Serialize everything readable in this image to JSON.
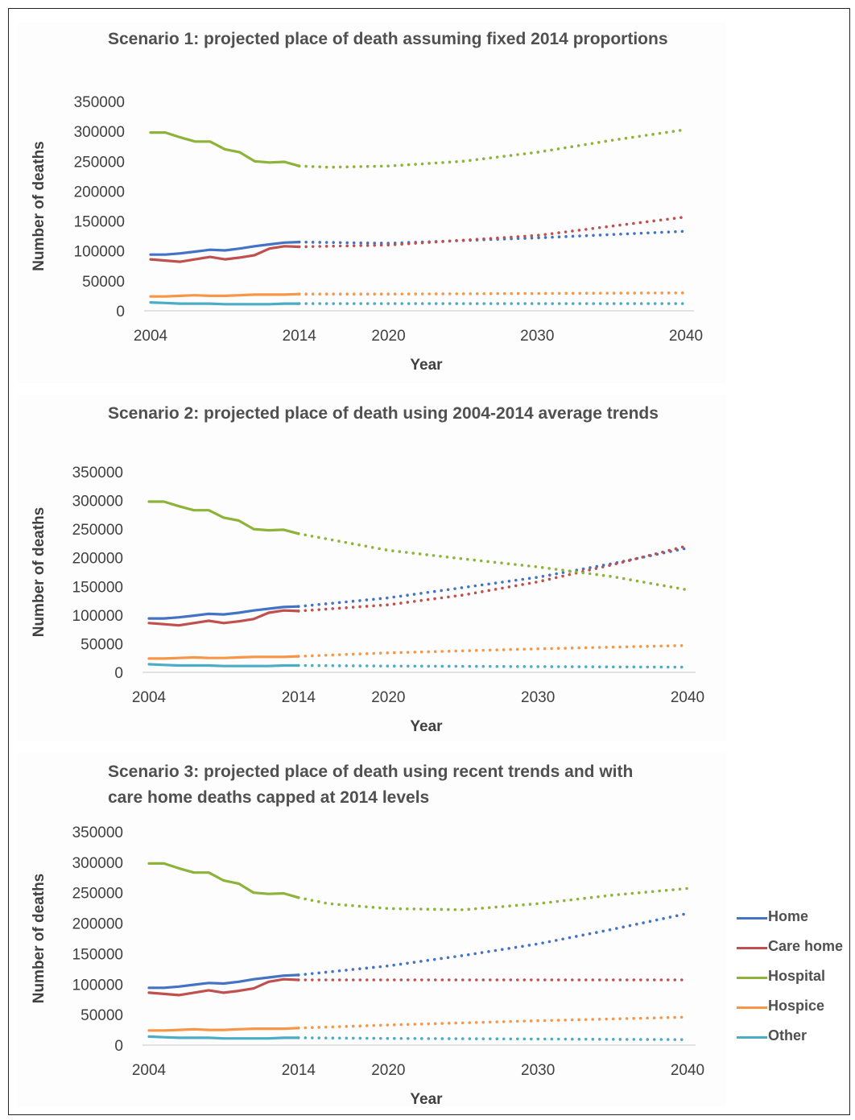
{
  "chart_data": [
    {
      "type": "line",
      "title": "Scenario 1: projected place of death assuming fixed 2014 proportions",
      "xlabel": "Year",
      "ylabel": "Number of deaths",
      "xlim": [
        2004,
        2040
      ],
      "ylim": [
        0,
        350000
      ],
      "x_ticks": [
        "2004",
        "2014",
        "2020",
        "2030",
        "2040"
      ],
      "y_ticks": [
        "350000",
        "300000",
        "250000",
        "200000",
        "150000",
        "100000",
        "50000",
        "0"
      ],
      "grid": false,
      "series": [
        {
          "name": "Home",
          "color": "#4472c4",
          "observed": {
            "x": [
              2004,
              2005,
              2006,
              2007,
              2008,
              2009,
              2010,
              2011,
              2012,
              2013,
              2014
            ],
            "y": [
              94000,
              94000,
              96000,
              99000,
              102000,
              101000,
              104000,
              108000,
              111000,
              114000,
              115000
            ]
          },
          "projected": {
            "x": [
              2014,
              2020,
              2030,
              2040
            ],
            "y": [
              115000,
              113000,
              122000,
              133000
            ]
          }
        },
        {
          "name": "Care home",
          "color": "#c0504d",
          "observed": {
            "x": [
              2004,
              2005,
              2006,
              2007,
              2008,
              2009,
              2010,
              2011,
              2012,
              2013,
              2014
            ],
            "y": [
              86000,
              84000,
              82000,
              86000,
              90000,
              86000,
              89000,
              93000,
              104000,
              108000,
              107000
            ]
          },
          "projected": {
            "x": [
              2014,
              2020,
              2030,
              2040
            ],
            "y": [
              107000,
              110000,
              126000,
              157000
            ]
          }
        },
        {
          "name": "Hospital",
          "color": "#8db33a",
          "observed": {
            "x": [
              2004,
              2005,
              2006,
              2007,
              2008,
              2009,
              2010,
              2011,
              2012,
              2013,
              2014
            ],
            "y": [
              298000,
              298000,
              290000,
              283000,
              283000,
              270000,
              265000,
              250000,
              248000,
              249000,
              242000
            ]
          },
          "projected": {
            "x": [
              2014,
              2016,
              2020,
              2025,
              2030,
              2035,
              2040
            ],
            "y": [
              242000,
              240000,
              242000,
              250000,
              265000,
              285000,
              303000
            ]
          }
        },
        {
          "name": "Hospice",
          "color": "#f79646",
          "observed": {
            "x": [
              2004,
              2005,
              2006,
              2007,
              2008,
              2009,
              2010,
              2011,
              2012,
              2013,
              2014
            ],
            "y": [
              24000,
              24000,
              25000,
              26000,
              25000,
              25000,
              26000,
              27000,
              27000,
              27000,
              28000
            ]
          },
          "projected": {
            "x": [
              2014,
              2020,
              2030,
              2040
            ],
            "y": [
              28000,
              28000,
              29000,
              30000
            ]
          }
        },
        {
          "name": "Other",
          "color": "#4bacc6",
          "observed": {
            "x": [
              2004,
              2005,
              2006,
              2007,
              2008,
              2009,
              2010,
              2011,
              2012,
              2013,
              2014
            ],
            "y": [
              14000,
              13000,
              12000,
              12000,
              12000,
              11000,
              11000,
              11000,
              11000,
              12000,
              12000
            ]
          },
          "projected": {
            "x": [
              2014,
              2020,
              2030,
              2040
            ],
            "y": [
              12000,
              12000,
              12000,
              12000
            ]
          }
        }
      ]
    },
    {
      "type": "line",
      "title": "Scenario 2: projected place of death using 2004-2014 average trends",
      "xlabel": "Year",
      "ylabel": "Number of deaths",
      "xlim": [
        2004,
        2040
      ],
      "ylim": [
        0,
        350000
      ],
      "x_ticks": [
        "2004",
        "2014",
        "2020",
        "2030",
        "2040"
      ],
      "y_ticks": [
        "350000",
        "300000",
        "250000",
        "200000",
        "150000",
        "100000",
        "50000",
        "0"
      ],
      "grid": false,
      "series": [
        {
          "name": "Home",
          "color": "#4472c4",
          "observed": {
            "x": [
              2004,
              2005,
              2006,
              2007,
              2008,
              2009,
              2010,
              2011,
              2012,
              2013,
              2014
            ],
            "y": [
              94000,
              94000,
              96000,
              99000,
              102000,
              101000,
              104000,
              108000,
              111000,
              114000,
              115000
            ]
          },
          "projected": {
            "x": [
              2014,
              2020,
              2025,
              2030,
              2035,
              2040
            ],
            "y": [
              115000,
              130000,
              148000,
              166000,
              190000,
              217000
            ]
          }
        },
        {
          "name": "Care home",
          "color": "#c0504d",
          "observed": {
            "x": [
              2004,
              2005,
              2006,
              2007,
              2008,
              2009,
              2010,
              2011,
              2012,
              2013,
              2014
            ],
            "y": [
              86000,
              84000,
              82000,
              86000,
              90000,
              86000,
              89000,
              93000,
              104000,
              108000,
              107000
            ]
          },
          "projected": {
            "x": [
              2014,
              2020,
              2025,
              2030,
              2035,
              2040
            ],
            "y": [
              107000,
              118000,
              135000,
              158000,
              188000,
              221000
            ]
          }
        },
        {
          "name": "Hospital",
          "color": "#8db33a",
          "observed": {
            "x": [
              2004,
              2005,
              2006,
              2007,
              2008,
              2009,
              2010,
              2011,
              2012,
              2013,
              2014
            ],
            "y": [
              298000,
              298000,
              290000,
              283000,
              283000,
              270000,
              265000,
              250000,
              248000,
              249000,
              242000
            ]
          },
          "projected": {
            "x": [
              2014,
              2020,
              2025,
              2030,
              2035,
              2040
            ],
            "y": [
              242000,
              213000,
              198000,
              184000,
              167000,
              144000
            ]
          }
        },
        {
          "name": "Hospice",
          "color": "#f79646",
          "observed": {
            "x": [
              2004,
              2005,
              2006,
              2007,
              2008,
              2009,
              2010,
              2011,
              2012,
              2013,
              2014
            ],
            "y": [
              24000,
              24000,
              25000,
              26000,
              25000,
              25000,
              26000,
              27000,
              27000,
              27000,
              28000
            ]
          },
          "projected": {
            "x": [
              2014,
              2020,
              2030,
              2040
            ],
            "y": [
              28000,
              34000,
              41000,
              47000
            ]
          }
        },
        {
          "name": "Other",
          "color": "#4bacc6",
          "observed": {
            "x": [
              2004,
              2005,
              2006,
              2007,
              2008,
              2009,
              2010,
              2011,
              2012,
              2013,
              2014
            ],
            "y": [
              14000,
              13000,
              12000,
              12000,
              12000,
              11000,
              11000,
              11000,
              11000,
              12000,
              12000
            ]
          },
          "projected": {
            "x": [
              2014,
              2020,
              2030,
              2040
            ],
            "y": [
              12000,
              11000,
              10000,
              9000
            ]
          }
        }
      ]
    },
    {
      "type": "line",
      "title": "Scenario 3: projected place of death using recent trends and with care home deaths capped at 2014 levels",
      "xlabel": "Year",
      "ylabel": "Number of deaths",
      "xlim": [
        2004,
        2040
      ],
      "ylim": [
        0,
        350000
      ],
      "x_ticks": [
        "2004",
        "2014",
        "2020",
        "2030",
        "2040"
      ],
      "y_ticks": [
        "350000",
        "300000",
        "250000",
        "200000",
        "150000",
        "100000",
        "50000",
        "0"
      ],
      "grid": false,
      "legend_position": "right",
      "series": [
        {
          "name": "Home",
          "color": "#4472c4",
          "observed": {
            "x": [
              2004,
              2005,
              2006,
              2007,
              2008,
              2009,
              2010,
              2011,
              2012,
              2013,
              2014
            ],
            "y": [
              94000,
              94000,
              96000,
              99000,
              102000,
              101000,
              104000,
              108000,
              111000,
              114000,
              115000
            ]
          },
          "projected": {
            "x": [
              2014,
              2020,
              2025,
              2030,
              2035,
              2040
            ],
            "y": [
              115000,
              130000,
              147000,
              166000,
              190000,
              216000
            ]
          }
        },
        {
          "name": "Care home",
          "color": "#c0504d",
          "observed": {
            "x": [
              2004,
              2005,
              2006,
              2007,
              2008,
              2009,
              2010,
              2011,
              2012,
              2013,
              2014
            ],
            "y": [
              86000,
              84000,
              82000,
              86000,
              90000,
              86000,
              89000,
              93000,
              104000,
              108000,
              107000
            ]
          },
          "projected": {
            "x": [
              2014,
              2040
            ],
            "y": [
              107000,
              107000
            ]
          }
        },
        {
          "name": "Hospital",
          "color": "#8db33a",
          "observed": {
            "x": [
              2004,
              2005,
              2006,
              2007,
              2008,
              2009,
              2010,
              2011,
              2012,
              2013,
              2014
            ],
            "y": [
              298000,
              298000,
              290000,
              283000,
              283000,
              270000,
              265000,
              250000,
              248000,
              249000,
              242000
            ]
          },
          "projected": {
            "x": [
              2014,
              2016,
              2020,
              2025,
              2030,
              2035,
              2040
            ],
            "y": [
              242000,
              232000,
              224000,
              222000,
              232000,
              246000,
              257000
            ]
          }
        },
        {
          "name": "Hospice",
          "color": "#f79646",
          "observed": {
            "x": [
              2004,
              2005,
              2006,
              2007,
              2008,
              2009,
              2010,
              2011,
              2012,
              2013,
              2014
            ],
            "y": [
              24000,
              24000,
              25000,
              26000,
              25000,
              25000,
              26000,
              27000,
              27000,
              27000,
              28000
            ]
          },
          "projected": {
            "x": [
              2014,
              2020,
              2030,
              2040
            ],
            "y": [
              28000,
              33000,
              40000,
              46000
            ]
          }
        },
        {
          "name": "Other",
          "color": "#4bacc6",
          "observed": {
            "x": [
              2004,
              2005,
              2006,
              2007,
              2008,
              2009,
              2010,
              2011,
              2012,
              2013,
              2014
            ],
            "y": [
              14000,
              13000,
              12000,
              12000,
              12000,
              11000,
              11000,
              11000,
              11000,
              12000,
              12000
            ]
          },
          "projected": {
            "x": [
              2014,
              2020,
              2030,
              2040
            ],
            "y": [
              12000,
              11000,
              10000,
              9000
            ]
          }
        }
      ]
    }
  ],
  "legend": [
    {
      "label": "Home",
      "color": "#4472c4"
    },
    {
      "label": "Care home",
      "color": "#c0504d"
    },
    {
      "label": "Hospital",
      "color": "#8db33a"
    },
    {
      "label": "Hospice",
      "color": "#f79646"
    },
    {
      "label": "Other",
      "color": "#4bacc6"
    }
  ]
}
